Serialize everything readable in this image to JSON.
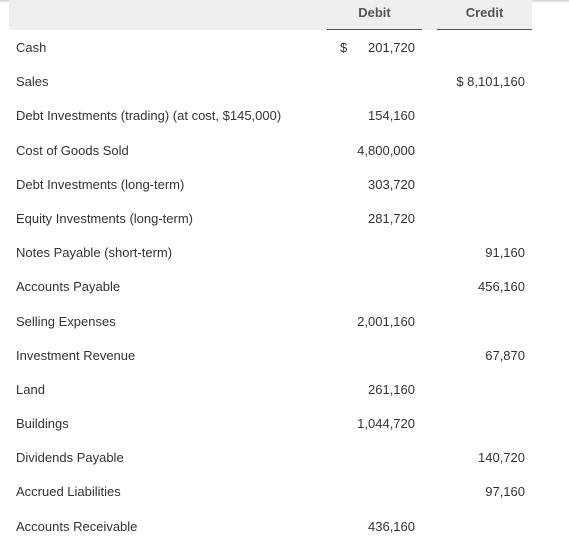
{
  "table": {
    "headers": {
      "account": "",
      "debit": "Debit",
      "credit": "Credit"
    },
    "rows": [
      {
        "account": "Cash",
        "currency": "$",
        "debit": "201,720",
        "credit": ""
      },
      {
        "account": "Sales",
        "currency": "",
        "debit": "",
        "credit": "$ 8,101,160"
      },
      {
        "account": "Debt Investments (trading) (at cost, $145,000)",
        "currency": "",
        "debit": "154,160",
        "credit": ""
      },
      {
        "account": "Cost of Goods Sold",
        "currency": "",
        "debit": "4,800,000",
        "credit": ""
      },
      {
        "account": "Debt Investments (long-term)",
        "currency": "",
        "debit": "303,720",
        "credit": ""
      },
      {
        "account": "Equity Investments (long-term)",
        "currency": "",
        "debit": "281,720",
        "credit": ""
      },
      {
        "account": "Notes Payable (short-term)",
        "currency": "",
        "debit": "",
        "credit": "91,160"
      },
      {
        "account": "Accounts Payable",
        "currency": "",
        "debit": "",
        "credit": "456,160"
      },
      {
        "account": "Selling Expenses",
        "currency": "",
        "debit": "2,001,160",
        "credit": ""
      },
      {
        "account": "Investment Revenue",
        "currency": "",
        "debit": "",
        "credit": "67,870"
      },
      {
        "account": "Land",
        "currency": "",
        "debit": "261,160",
        "credit": ""
      },
      {
        "account": "Buildings",
        "currency": "",
        "debit": "1,044,720",
        "credit": ""
      },
      {
        "account": "Dividends Payable",
        "currency": "",
        "debit": "",
        "credit": "140,720"
      },
      {
        "account": "Accrued Liabilities",
        "currency": "",
        "debit": "",
        "credit": "97,160"
      },
      {
        "account": "Accounts Receivable",
        "currency": "",
        "debit": "436,160",
        "credit": ""
      }
    ]
  }
}
